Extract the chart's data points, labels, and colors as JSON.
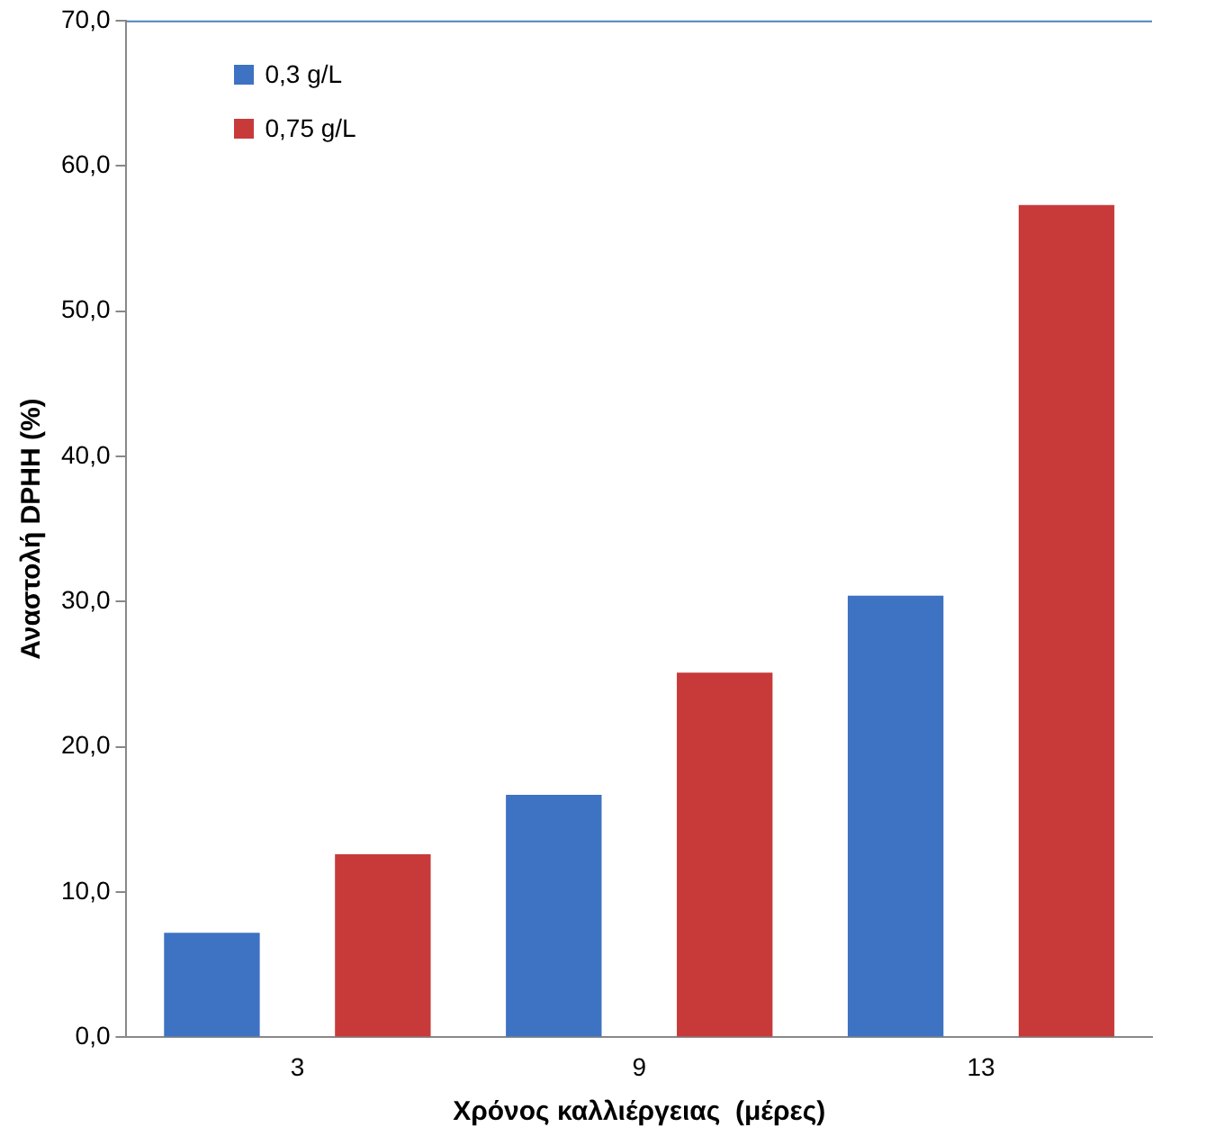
{
  "chart_data": {
    "type": "bar",
    "xlabel": "Χρόνος καλλιέργειας  (μέρες)",
    "ylabel": "Αναστολή DPHH (%)",
    "categories": [
      "3",
      "9",
      "13"
    ],
    "series": [
      {
        "name": "0,3 g/L",
        "color": "#3e72c2",
        "values": [
          7.2,
          16.7,
          30.4
        ]
      },
      {
        "name": "0,75 g/L",
        "color": "#c83a3a",
        "values": [
          12.6,
          25.1,
          57.3
        ]
      }
    ],
    "ylim": [
      0,
      70
    ],
    "yticks": [
      {
        "value": 0,
        "label": "0,0"
      },
      {
        "value": 10,
        "label": "10,0"
      },
      {
        "value": 20,
        "label": "20,0"
      },
      {
        "value": 30,
        "label": "30,0"
      },
      {
        "value": 40,
        "label": "40,0"
      },
      {
        "value": 50,
        "label": "50,0"
      },
      {
        "value": 60,
        "label": "60,0"
      },
      {
        "value": 70,
        "label": "70,0"
      }
    ],
    "grid": false,
    "legend": "top left"
  }
}
